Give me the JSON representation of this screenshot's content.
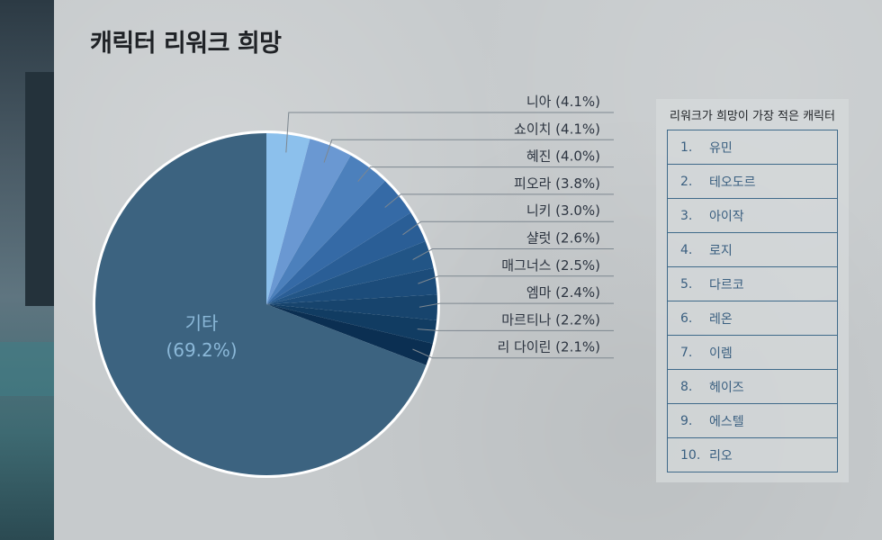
{
  "title": "캐릭터 리워크 희망",
  "chart_data": {
    "type": "pie",
    "title": "캐릭터 리워크 희망",
    "start_angle_deg": 0,
    "direction": "clockwise",
    "slices": [
      {
        "name": "니아",
        "value": 4.1,
        "label": "니아 (4.1%)",
        "color": "#8cc0ec"
      },
      {
        "name": "쇼이치",
        "value": 4.1,
        "label": "쇼이치 (4.1%)",
        "color": "#6a98d2"
      },
      {
        "name": "혜진",
        "value": 4.0,
        "label": "혜진 (4.0%)",
        "color": "#4c80bc"
      },
      {
        "name": "피오라",
        "value": 3.8,
        "label": "피오라 (3.8%)",
        "color": "#356aa6"
      },
      {
        "name": "니키",
        "value": 3.0,
        "label": "니키 (3.0%)",
        "color": "#2a5e96"
      },
      {
        "name": "샬럿",
        "value": 2.6,
        "label": "샬럿 (2.6%)",
        "color": "#225586"
      },
      {
        "name": "매그너스",
        "value": 2.5,
        "label": "매그너스 (2.5%)",
        "color": "#1c4c7a"
      },
      {
        "name": "엠마",
        "value": 2.4,
        "label": "엠마 (2.4%)",
        "color": "#17446d"
      },
      {
        "name": "마르티나",
        "value": 2.2,
        "label": "마르티나 (2.2%)",
        "color": "#113c62"
      },
      {
        "name": "리 다이린",
        "value": 2.1,
        "label": "리 다이린 (2.1%)",
        "color": "#0b2f52"
      },
      {
        "name": "기타",
        "value": 69.2,
        "label_line1": "기타",
        "label_line2": "(69.2%)",
        "color": "#3c6380",
        "label_color": "#8bb8d8"
      }
    ]
  },
  "ranking": {
    "title": "리워크가 희망이 가장 적은 캐릭터",
    "items": [
      {
        "rank": "1.",
        "name": "유민"
      },
      {
        "rank": "2.",
        "name": "테오도르"
      },
      {
        "rank": "3.",
        "name": "아이작"
      },
      {
        "rank": "4.",
        "name": "로지"
      },
      {
        "rank": "5.",
        "name": "다르코"
      },
      {
        "rank": "6.",
        "name": "레온"
      },
      {
        "rank": "7.",
        "name": "이렘"
      },
      {
        "rank": "8.",
        "name": "헤이즈"
      },
      {
        "rank": "9.",
        "name": "에스텔"
      },
      {
        "rank": "10.",
        "name": "리오"
      }
    ]
  }
}
